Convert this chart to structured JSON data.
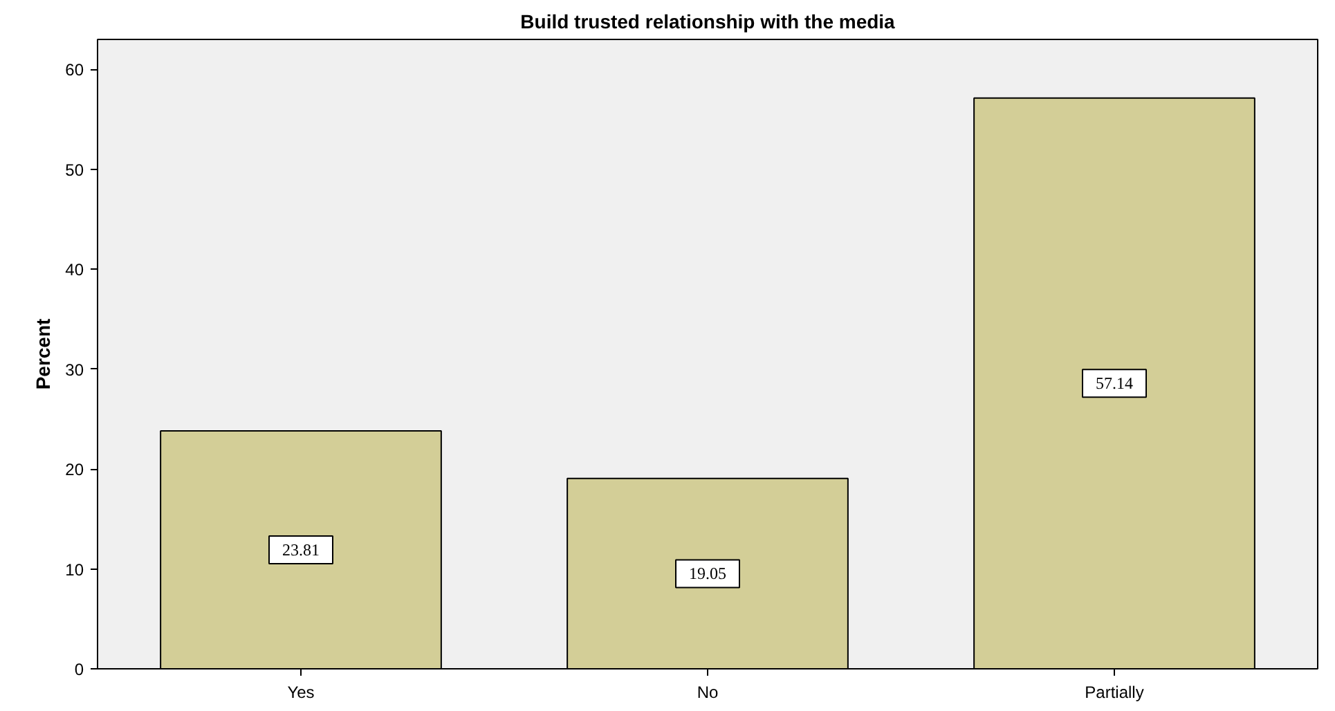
{
  "chart_data": {
    "type": "bar",
    "title": "Build trusted relationship with the media",
    "ylabel": "Percent",
    "categories": [
      "Yes",
      "No",
      "Partially"
    ],
    "values": [
      23.81,
      19.05,
      57.14
    ],
    "color": "#d3ce97",
    "ylim": [
      0,
      63
    ],
    "yticks": [
      0,
      10,
      20,
      30,
      40,
      50,
      60
    ],
    "data_labels": true,
    "grid": false
  }
}
